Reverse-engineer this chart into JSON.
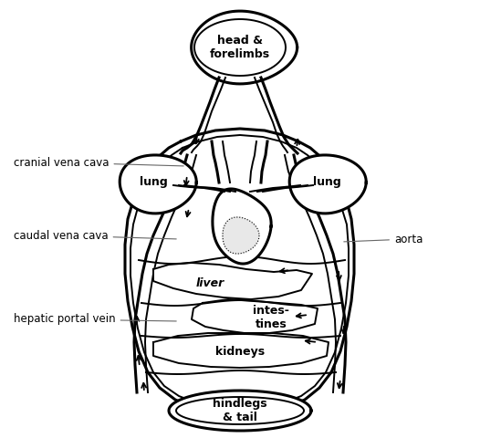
{
  "background_color": "#ffffff",
  "line_color": "#000000",
  "labels": {
    "head_forelimbs": "head &\nforelimbs",
    "lung_left": "lung",
    "lung_right": "lung",
    "cranial_vena_cava": "cranial vena cava",
    "caudal_vena_cava": "caudal vena cava",
    "aorta": "aorta",
    "hepatic_portal_vein": "hepatic portal vein",
    "liver": "liver",
    "intestines": "intes-\ntines",
    "kidneys": "kidneys",
    "hindlegs_tail": "hindlegs\n& tail"
  },
  "figsize": [
    5.26,
    4.8
  ],
  "dpi": 100
}
